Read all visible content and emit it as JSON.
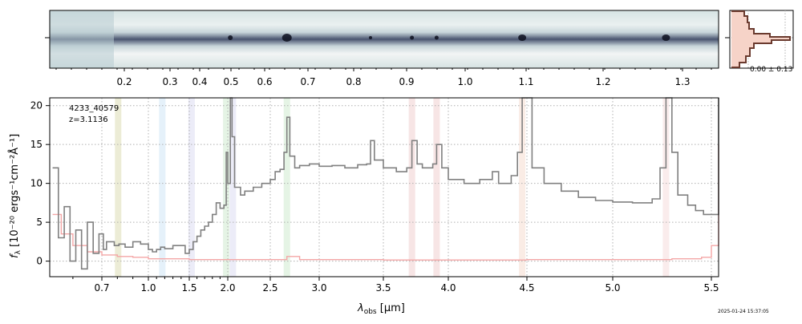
{
  "top_axis": {
    "ticks": [
      "0.2",
      "0.3",
      "0.4",
      "0.5",
      "0.6",
      "0.7",
      "0.8",
      "0.9",
      "1.0",
      "1.1",
      "1.2",
      "1.3"
    ]
  },
  "profile": {
    "label": "0.00 ± 0.13"
  },
  "annotation": {
    "id": "4233_40579",
    "redshift": "z=3.1136"
  },
  "axes": {
    "xlabel_main": "λ",
    "xlabel_sub": "obs",
    "xlabel_unit": " [μm]",
    "ylabel_main": "f",
    "ylabel_sub": "λ",
    "ylabel_unit": " [10⁻²⁰ ergs⁻¹cm⁻²Å⁻¹]"
  },
  "timestamp": "2025-01-24 15:37:05",
  "colors": {
    "flux": "#808080",
    "error": "#f4a6a6",
    "grid": "#b0b0b0"
  },
  "chart_data": {
    "type": "line",
    "xlabel": "λobs [μm]",
    "ylabel": "fλ [10⁻²⁰ ergs⁻¹cm⁻²Å⁻¹]",
    "xlim": [
      0.52,
      5.52
    ],
    "ylim": [
      -2,
      21
    ],
    "x_scale": "nonlinear (prism dispersion)",
    "grid": true,
    "x_ticks": [
      0.7,
      1.0,
      1.5,
      2.0,
      2.5,
      3.0,
      3.5,
      4.0,
      4.5,
      5.0,
      5.5
    ],
    "x_tick_labels": [
      "0.7",
      "1.0",
      "1.5",
      "2.0",
      "2.5",
      "3.0",
      "3.5",
      "4.0",
      "4.5",
      "5.0",
      "5.5"
    ],
    "y_ticks": [
      0,
      5,
      10,
      15,
      20
    ],
    "y_tick_labels": [
      "0",
      "5",
      "10",
      "15",
      "20"
    ],
    "line_bands": [
      {
        "x": 0.805,
        "color": "#e6e6c8"
      },
      {
        "x": 1.17,
        "color": "#dcecf8"
      },
      {
        "x": 1.53,
        "color": "#e6e6f6"
      },
      {
        "x": 1.98,
        "color": "#dcf0dc"
      },
      {
        "x": 2.06,
        "color": "#e6e6f6"
      },
      {
        "x": 2.67,
        "color": "#dcf0dc"
      },
      {
        "x": 3.72,
        "color": "#f4dcdc"
      },
      {
        "x": 3.91,
        "color": "#f4dcdc"
      },
      {
        "x": 4.47,
        "color": "#f8e6dc"
      },
      {
        "x": 5.27,
        "color": "#f8e6e6"
      }
    ],
    "series": [
      {
        "role": "flux",
        "points": [
          [
            0.53,
            12
          ],
          [
            0.55,
            3
          ],
          [
            0.57,
            7
          ],
          [
            0.59,
            0
          ],
          [
            0.61,
            4
          ],
          [
            0.63,
            -1
          ],
          [
            0.65,
            5
          ],
          [
            0.67,
            1
          ],
          [
            0.69,
            3.5
          ],
          [
            0.71,
            1.5
          ],
          [
            0.73,
            2.5
          ],
          [
            0.75,
            2.5
          ],
          [
            0.78,
            2
          ],
          [
            0.81,
            2.2
          ],
          [
            0.85,
            1.8
          ],
          [
            0.9,
            2.5
          ],
          [
            0.95,
            2.2
          ],
          [
            1.0,
            1.5
          ],
          [
            1.05,
            1.2
          ],
          [
            1.1,
            1.5
          ],
          [
            1.15,
            1.8
          ],
          [
            1.2,
            1.6
          ],
          [
            1.3,
            2.0
          ],
          [
            1.4,
            2.0
          ],
          [
            1.45,
            1.0
          ],
          [
            1.5,
            1.5
          ],
          [
            1.55,
            2.5
          ],
          [
            1.6,
            3.2
          ],
          [
            1.65,
            4.0
          ],
          [
            1.7,
            4.5
          ],
          [
            1.75,
            5.0
          ],
          [
            1.8,
            6.0
          ],
          [
            1.85,
            7.5
          ],
          [
            1.9,
            6.8
          ],
          [
            1.95,
            7.2
          ],
          [
            1.98,
            14
          ],
          [
            2.0,
            10
          ],
          [
            2.03,
            21
          ],
          [
            2.05,
            16
          ],
          [
            2.08,
            9.5
          ],
          [
            2.15,
            8.5
          ],
          [
            2.2,
            9.0
          ],
          [
            2.3,
            9.5
          ],
          [
            2.4,
            10
          ],
          [
            2.5,
            10.5
          ],
          [
            2.55,
            11.5
          ],
          [
            2.6,
            11.8
          ],
          [
            2.64,
            14
          ],
          [
            2.67,
            18.5
          ],
          [
            2.7,
            13.5
          ],
          [
            2.75,
            12.0
          ],
          [
            2.8,
            12.3
          ],
          [
            2.9,
            12.5
          ],
          [
            3.0,
            12.2
          ],
          [
            3.1,
            12.3
          ],
          [
            3.2,
            12.0
          ],
          [
            3.3,
            12.4
          ],
          [
            3.37,
            12.5
          ],
          [
            3.4,
            15.5
          ],
          [
            3.43,
            13
          ],
          [
            3.5,
            12.0
          ],
          [
            3.6,
            11.5
          ],
          [
            3.68,
            12.0
          ],
          [
            3.72,
            15.5
          ],
          [
            3.76,
            12.5
          ],
          [
            3.8,
            12.0
          ],
          [
            3.88,
            12.5
          ],
          [
            3.91,
            15.0
          ],
          [
            3.95,
            12.0
          ],
          [
            4.0,
            10.5
          ],
          [
            4.1,
            10.0
          ],
          [
            4.2,
            10.5
          ],
          [
            4.28,
            11.5
          ],
          [
            4.32,
            10.0
          ],
          [
            4.4,
            11.0
          ],
          [
            4.44,
            14
          ],
          [
            4.47,
            21
          ],
          [
            4.5,
            21
          ],
          [
            4.53,
            12
          ],
          [
            4.6,
            10.0
          ],
          [
            4.7,
            9.0
          ],
          [
            4.8,
            8.2
          ],
          [
            4.9,
            7.8
          ],
          [
            5.0,
            7.6
          ],
          [
            5.1,
            7.5
          ],
          [
            5.2,
            8.0
          ],
          [
            5.24,
            12
          ],
          [
            5.27,
            21
          ],
          [
            5.3,
            14
          ],
          [
            5.33,
            8.5
          ],
          [
            5.38,
            7.2
          ],
          [
            5.42,
            6.5
          ],
          [
            5.46,
            6.0
          ],
          [
            5.5,
            6.0
          ],
          [
            5.52,
            21
          ]
        ]
      },
      {
        "role": "error",
        "points": [
          [
            0.53,
            6
          ],
          [
            0.56,
            3.5
          ],
          [
            0.6,
            2.0
          ],
          [
            0.65,
            1.2
          ],
          [
            0.7,
            0.8
          ],
          [
            0.8,
            0.6
          ],
          [
            0.9,
            0.5
          ],
          [
            1.0,
            0.3
          ],
          [
            1.5,
            0.2
          ],
          [
            2.0,
            0.2
          ],
          [
            2.5,
            0.2
          ],
          [
            2.67,
            0.6
          ],
          [
            2.8,
            0.2
          ],
          [
            3.5,
            0.15
          ],
          [
            4.0,
            0.15
          ],
          [
            4.5,
            0.2
          ],
          [
            5.0,
            0.2
          ],
          [
            5.3,
            0.3
          ],
          [
            5.45,
            0.5
          ],
          [
            5.5,
            2.0
          ],
          [
            5.52,
            15
          ]
        ]
      }
    ]
  }
}
